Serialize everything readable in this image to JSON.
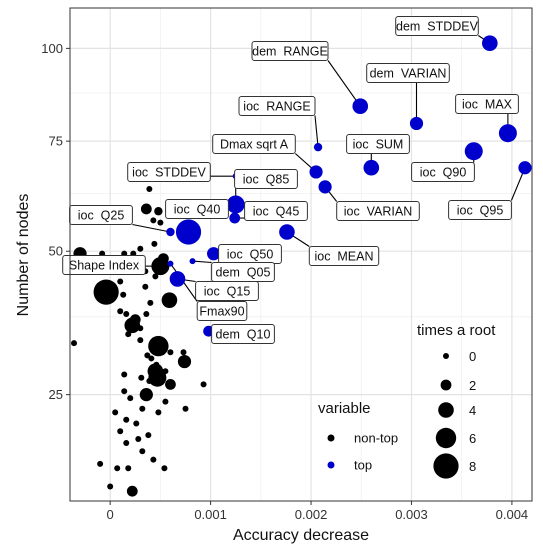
{
  "chart_data": {
    "type": "scatter",
    "xlabel": "Accuracy decrease",
    "ylabel": "Number of nodes",
    "xlim": [
      -0.0004,
      0.0042
    ],
    "ylim": [
      12,
      112
    ],
    "x_ticks": [
      0,
      0.001,
      0.002,
      0.003,
      0.004
    ],
    "x_tick_labels": [
      "0",
      "0.001",
      "0.002",
      "0.003",
      "0.004"
    ],
    "y_ticks": [
      25,
      50,
      75,
      100
    ],
    "y_tick_labels": [
      "25",
      "50",
      "75",
      "100"
    ],
    "grid": true,
    "colors": {
      "non-top": "#000000",
      "top": "#0000cc"
    },
    "legend_size": {
      "title": "times a root",
      "placement": "bottom-right",
      "entries": [
        {
          "label": "0",
          "size": 0
        },
        {
          "label": "2",
          "size": 2
        },
        {
          "label": "4",
          "size": 4
        },
        {
          "label": "6",
          "size": 6
        },
        {
          "label": "8",
          "size": 8
        }
      ]
    },
    "legend_color": {
      "title": "variable",
      "placement": "bottom-right",
      "entries": [
        {
          "label": "non-top",
          "color": "#000000"
        },
        {
          "label": "top",
          "color": "#0000cc"
        }
      ]
    },
    "points": [
      {
        "x": 0.00378,
        "y": 101.5,
        "size": 4,
        "group": "top",
        "label": "dem  STDDEV"
      },
      {
        "x": 0.00249,
        "y": 84,
        "size": 4,
        "group": "top",
        "label": "dem  RANGE"
      },
      {
        "x": 0.00305,
        "y": 79.5,
        "size": 3,
        "group": "top",
        "label": "dem  VARIAN"
      },
      {
        "x": 0.00396,
        "y": 77,
        "size": 5,
        "group": "top",
        "label": "ioc  MAX"
      },
      {
        "x": 0.00207,
        "y": 73.5,
        "size": 1,
        "group": "top",
        "label": "ioc  RANGE"
      },
      {
        "x": 0.00362,
        "y": 72.5,
        "size": 5,
        "group": "top",
        "label": "ioc  Q90"
      },
      {
        "x": 0.0026,
        "y": 68.5,
        "size": 4,
        "group": "top",
        "label": "ioc  SUM"
      },
      {
        "x": 0.00413,
        "y": 68.5,
        "size": 3,
        "group": "top",
        "label": "ioc  Q95"
      },
      {
        "x": 0.00205,
        "y": 67.5,
        "size": 3,
        "group": "top",
        "label": "Dmax sqrt A"
      },
      {
        "x": 0.00125,
        "y": 66.5,
        "size": 0,
        "group": "top",
        "label": "ioc  STDDEV"
      },
      {
        "x": 0.00214,
        "y": 64,
        "size": 3,
        "group": "top",
        "label": "ioc  VARIAN"
      },
      {
        "x": 0.00125,
        "y": 60,
        "size": 5,
        "group": "top",
        "label": "ioc  Q85"
      },
      {
        "x": 0.00124,
        "y": 57,
        "size": 2,
        "group": "top",
        "label": "ioc  Q45"
      },
      {
        "x": 0.0006,
        "y": 54,
        "size": 1,
        "group": "top",
        "label": "ioc  Q25"
      },
      {
        "x": 0.00078,
        "y": 54,
        "size": 8,
        "group": "top",
        "label": "ioc  Q40"
      },
      {
        "x": 0.00176,
        "y": 54,
        "size": 4,
        "group": "top",
        "label": "ioc  MEAN"
      },
      {
        "x": 0.00103,
        "y": 49.5,
        "size": 3,
        "group": "top",
        "label": "ioc  Q50"
      },
      {
        "x": 0.00082,
        "y": 48,
        "size": 0,
        "group": "top",
        "label": "dem  Q05"
      },
      {
        "x": 0.0005,
        "y": 47,
        "size": 5,
        "group": "non-top",
        "label": "Shape Index"
      },
      {
        "x": 0.00067,
        "y": 44.5,
        "size": 4,
        "group": "top",
        "label": "ioc  Q15"
      },
      {
        "x": 0.0006,
        "y": 47.5,
        "size": 0,
        "group": "top",
        "label": "Fmax90"
      },
      {
        "x": 0.00098,
        "y": 35,
        "size": 2,
        "group": "top",
        "label": "dem  Q10"
      },
      {
        "x": 0.00036,
        "y": 59,
        "size": 2,
        "group": "non-top"
      },
      {
        "x": 0.00039,
        "y": 63.5,
        "size": 0,
        "group": "non-top"
      },
      {
        "x": 0.00043,
        "y": 56.5,
        "size": 0,
        "group": "non-top"
      },
      {
        "x": 0.00048,
        "y": 58.5,
        "size": 1,
        "group": "non-top"
      },
      {
        "x": 0.0005,
        "y": 56,
        "size": 0,
        "group": "non-top"
      },
      {
        "x": 0.00044,
        "y": 51.5,
        "size": 0,
        "group": "non-top"
      },
      {
        "x": 0.00053,
        "y": 48.5,
        "size": 2,
        "group": "non-top"
      },
      {
        "x": 0.00045,
        "y": 45,
        "size": 0,
        "group": "non-top"
      },
      {
        "x": -0.0003,
        "y": 49.5,
        "size": 3,
        "group": "non-top"
      },
      {
        "x": -8e-05,
        "y": 49.5,
        "size": 0,
        "group": "non-top"
      },
      {
        "x": 7e-05,
        "y": 48.5,
        "size": 0,
        "group": "non-top"
      },
      {
        "x": 0.00014,
        "y": 49.5,
        "size": 0,
        "group": "non-top"
      },
      {
        "x": 0.00023,
        "y": 49.5,
        "size": 0,
        "group": "non-top"
      },
      {
        "x": 0.0003,
        "y": 50.5,
        "size": 0,
        "group": "non-top"
      },
      {
        "x": 5e-05,
        "y": 46.5,
        "size": 0,
        "group": "non-top"
      },
      {
        "x": 0.00035,
        "y": 46,
        "size": 0,
        "group": "non-top"
      },
      {
        "x": -4e-05,
        "y": 42,
        "size": 8,
        "group": "non-top"
      },
      {
        "x": 0.0001,
        "y": 44,
        "size": 0,
        "group": "non-top"
      },
      {
        "x": 0.00013,
        "y": 41.5,
        "size": 0,
        "group": "non-top"
      },
      {
        "x": 0.00035,
        "y": 43,
        "size": 0,
        "group": "non-top"
      },
      {
        "x": 0.00059,
        "y": 40.5,
        "size": 4,
        "group": "non-top"
      },
      {
        "x": 0.0004,
        "y": 40,
        "size": 0,
        "group": "non-top"
      },
      {
        "x": 0.00036,
        "y": 38,
        "size": 0,
        "group": "non-top"
      },
      {
        "x": 0.0001,
        "y": 38.5,
        "size": 0,
        "group": "non-top"
      },
      {
        "x": 0.00016,
        "y": 38,
        "size": 0,
        "group": "non-top"
      },
      {
        "x": 0.00025,
        "y": 37,
        "size": 2,
        "group": "non-top"
      },
      {
        "x": 0.00022,
        "y": 36,
        "size": 4,
        "group": "non-top"
      },
      {
        "x": 0.0003,
        "y": 35.5,
        "size": 0,
        "group": "non-top"
      },
      {
        "x": 0.00018,
        "y": 34.5,
        "size": 0,
        "group": "non-top"
      },
      {
        "x": 0.0003,
        "y": 33.5,
        "size": 0,
        "group": "non-top"
      },
      {
        "x": 0.00044,
        "y": 33.5,
        "size": 0,
        "group": "non-top"
      },
      {
        "x": 0.00048,
        "y": 32.5,
        "size": 6,
        "group": "non-top"
      },
      {
        "x": 0.00052,
        "y": 31.5,
        "size": 0,
        "group": "non-top"
      },
      {
        "x": 0.00037,
        "y": 31,
        "size": 0,
        "group": "non-top"
      },
      {
        "x": 0.0006,
        "y": 31.5,
        "size": 0,
        "group": "non-top"
      },
      {
        "x": 0.00073,
        "y": 31.5,
        "size": 0,
        "group": "non-top"
      },
      {
        "x": 0.00041,
        "y": 30.5,
        "size": 0,
        "group": "non-top"
      },
      {
        "x": 0.00046,
        "y": 29.5,
        "size": 0,
        "group": "non-top"
      },
      {
        "x": -0.00036,
        "y": 33,
        "size": 0,
        "group": "non-top"
      },
      {
        "x": 0.00074,
        "y": 30,
        "size": 3,
        "group": "non-top"
      },
      {
        "x": 0.00045,
        "y": 28.5,
        "size": 4,
        "group": "non-top"
      },
      {
        "x": 0.00055,
        "y": 28.5,
        "size": 0,
        "group": "non-top"
      },
      {
        "x": 0.00047,
        "y": 27.5,
        "size": 5,
        "group": "non-top"
      },
      {
        "x": 0.00039,
        "y": 27,
        "size": 0,
        "group": "non-top"
      },
      {
        "x": 0.00031,
        "y": 27.5,
        "size": 0,
        "group": "non-top"
      },
      {
        "x": 0.00014,
        "y": 28,
        "size": 0,
        "group": "non-top"
      },
      {
        "x": 0.0006,
        "y": 26.5,
        "size": 2,
        "group": "non-top"
      },
      {
        "x": 0.00093,
        "y": 26.5,
        "size": 0,
        "group": "non-top"
      },
      {
        "x": 0.00014,
        "y": 25.5,
        "size": 0,
        "group": "non-top"
      },
      {
        "x": 0.00036,
        "y": 25,
        "size": 3,
        "group": "non-top"
      },
      {
        "x": 0.0002,
        "y": 24.5,
        "size": 0,
        "group": "non-top"
      },
      {
        "x": 0.00032,
        "y": 23,
        "size": 0,
        "group": "non-top"
      },
      {
        "x": 0.00055,
        "y": 24,
        "size": 0,
        "group": "non-top"
      },
      {
        "x": 0.00075,
        "y": 23,
        "size": 0,
        "group": "non-top"
      },
      {
        "x": 5e-05,
        "y": 22.5,
        "size": 0,
        "group": "non-top"
      },
      {
        "x": 0.00048,
        "y": 22.5,
        "size": 0,
        "group": "non-top"
      },
      {
        "x": 0.00016,
        "y": 21.5,
        "size": 0,
        "group": "non-top"
      },
      {
        "x": 0.00026,
        "y": 21,
        "size": 0,
        "group": "non-top"
      },
      {
        "x": 0.0001,
        "y": 20,
        "size": 0,
        "group": "non-top"
      },
      {
        "x": 0.00038,
        "y": 19.5,
        "size": 0,
        "group": "non-top"
      },
      {
        "x": 0.00028,
        "y": 19,
        "size": 0,
        "group": "non-top"
      },
      {
        "x": 0.00016,
        "y": 18.5,
        "size": 0,
        "group": "non-top"
      },
      {
        "x": 0.00032,
        "y": 17.5,
        "size": 0,
        "group": "non-top"
      },
      {
        "x": 0.00043,
        "y": 16.5,
        "size": 0,
        "group": "non-top"
      },
      {
        "x": -0.0001,
        "y": 16,
        "size": 0,
        "group": "non-top"
      },
      {
        "x": 7e-05,
        "y": 15.5,
        "size": 0,
        "group": "non-top"
      },
      {
        "x": 0.00018,
        "y": 15.5,
        "size": 0,
        "group": "non-top"
      },
      {
        "x": 0.00054,
        "y": 15.5,
        "size": 0,
        "group": "non-top"
      },
      {
        "x": 0.00022,
        "y": 13,
        "size": 2,
        "group": "non-top"
      },
      {
        "x": 0.0,
        "y": 13.5,
        "size": 0,
        "group": "non-top"
      }
    ]
  }
}
